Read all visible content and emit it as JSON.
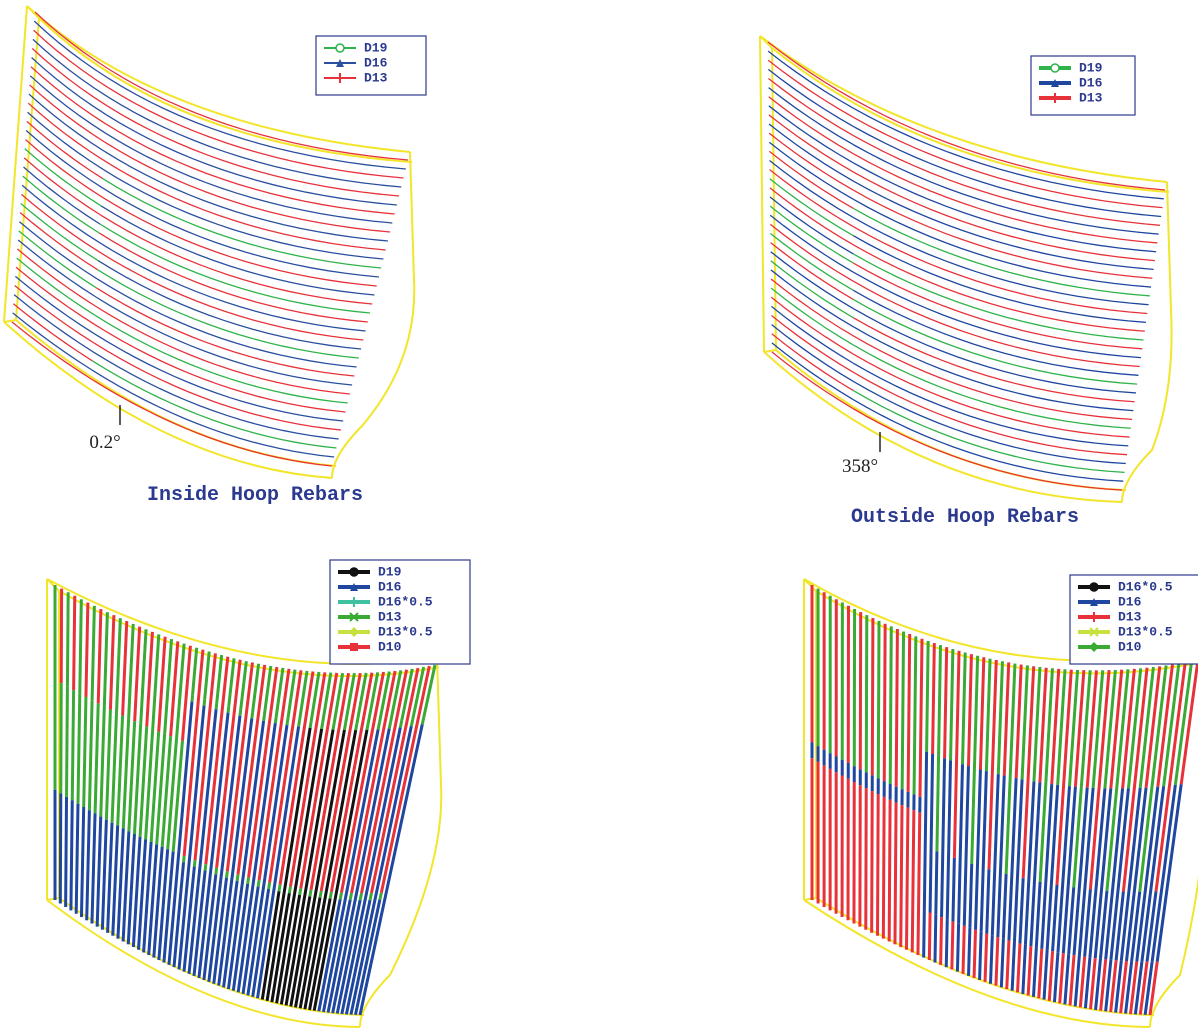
{
  "panels": [
    {
      "caption": "Inside Hoop Rebars",
      "angle_label": "0.2°",
      "legend": [
        {
          "label": "D19",
          "color": "#2fb34a",
          "marker": "circle"
        },
        {
          "label": "D16",
          "color": "#2a4fa0",
          "marker": "triangle"
        },
        {
          "label": "D13",
          "color": "#e8323a",
          "marker": "plus"
        }
      ]
    },
    {
      "caption": "Outside Hoop Rebars",
      "angle_label": "358°",
      "legend": [
        {
          "label": "D19",
          "color": "#2fb34a",
          "marker": "circle"
        },
        {
          "label": "D16",
          "color": "#1f47a0",
          "marker": "triangle"
        },
        {
          "label": "D13",
          "color": "#e8323a",
          "marker": "plus"
        }
      ]
    },
    {
      "legend": [
        {
          "label": "D19",
          "color": "#111111",
          "marker": "circle"
        },
        {
          "label": "D16",
          "color": "#1f47a0",
          "marker": "triangle"
        },
        {
          "label": "D16*0.5",
          "color": "#3fc0a0",
          "marker": "plus"
        },
        {
          "label": "D13",
          "color": "#3aaa35",
          "marker": "x"
        },
        {
          "label": "D13*0.5",
          "color": "#c8e040",
          "marker": "diamond"
        },
        {
          "label": "D10",
          "color": "#e8323a",
          "marker": "square"
        }
      ]
    },
    {
      "legend": [
        {
          "label": "D16*0.5",
          "color": "#111111",
          "marker": "circle"
        },
        {
          "label": "D16",
          "color": "#1f47a0",
          "marker": "triangle"
        },
        {
          "label": "D13",
          "color": "#e8323a",
          "marker": "plus"
        },
        {
          "label": "D13*0.5",
          "color": "#c8e040",
          "marker": "x"
        },
        {
          "label": "D10",
          "color": "#3aaa35",
          "marker": "diamond"
        }
      ]
    }
  ]
}
